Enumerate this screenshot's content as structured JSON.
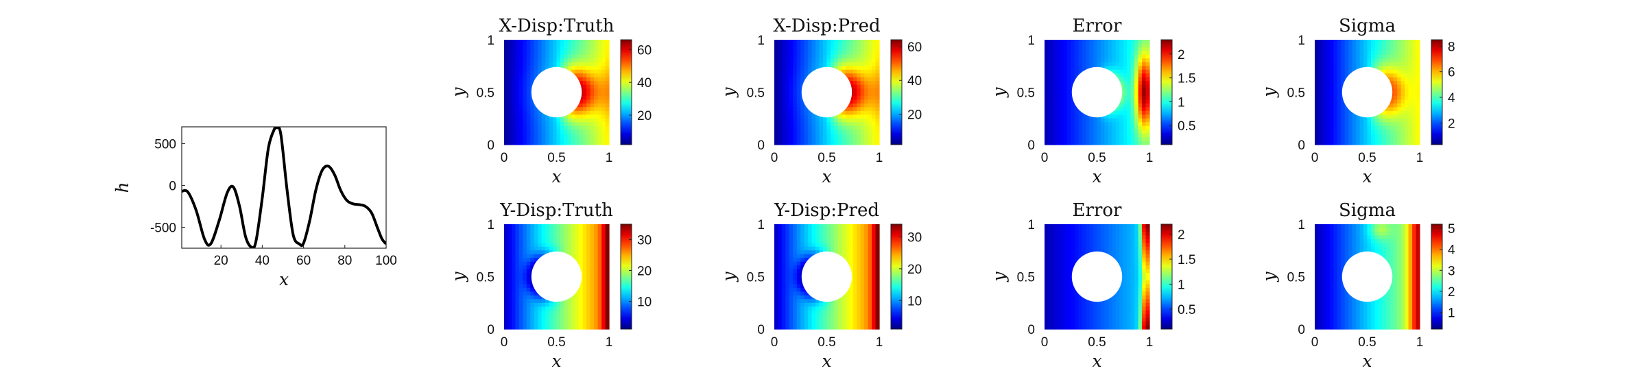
{
  "chart_data": [
    {
      "type": "line",
      "xlabel": "x",
      "ylabel": "h",
      "xlim": [
        1,
        100
      ],
      "ylim": [
        -750,
        700
      ],
      "xticks": [
        20,
        40,
        60,
        80,
        100
      ],
      "yticks": [
        500,
        0,
        -500
      ],
      "x": [
        1,
        4,
        8,
        12,
        15,
        19,
        23,
        26,
        29,
        32,
        35,
        37,
        40,
        43,
        46,
        47,
        49,
        52,
        55,
        58,
        60,
        63,
        66,
        69,
        72,
        75,
        78,
        81,
        84,
        87,
        90,
        93,
        96,
        98,
        100
      ],
      "y": [
        -70,
        -80,
        -300,
        -640,
        -700,
        -430,
        -90,
        -20,
        -250,
        -620,
        -740,
        -660,
        -150,
        450,
        680,
        690,
        610,
        -50,
        -590,
        -700,
        -690,
        -420,
        -50,
        180,
        230,
        130,
        -60,
        -180,
        -220,
        -230,
        -250,
        -330,
        -520,
        -640,
        -700
      ],
      "line_color": "#000000"
    },
    {
      "type": "heatmap",
      "title": "X-Disp:Truth",
      "xlabel": "x",
      "ylabel": "y",
      "xticks": [
        0,
        0.5,
        1
      ],
      "yticks": [
        0,
        0.5,
        1
      ],
      "colorbar_ticks": [
        20,
        40,
        60
      ],
      "colorbar_range": [
        2,
        66
      ],
      "field": "xdisp"
    },
    {
      "type": "heatmap",
      "title": "X-Disp:Pred",
      "xlabel": "x",
      "ylabel": "y",
      "xticks": [
        0,
        0.5,
        1
      ],
      "yticks": [
        0,
        0.5,
        1
      ],
      "colorbar_ticks": [
        20,
        40,
        60
      ],
      "colorbar_range": [
        2,
        64
      ],
      "field": "xdisp"
    },
    {
      "type": "heatmap",
      "title": "Error",
      "xlabel": "x",
      "ylabel": "y",
      "xticks": [
        0,
        0.5,
        1
      ],
      "yticks": [
        0,
        0.5,
        1
      ],
      "colorbar_ticks": [
        0.5,
        1,
        1.5,
        2
      ],
      "colorbar_tick_labels": [
        "0.5",
        "1",
        "1.5",
        "2"
      ],
      "colorbar_range": [
        0.1,
        2.3
      ],
      "field": "xerr"
    },
    {
      "type": "heatmap",
      "title": "Sigma",
      "xlabel": "x",
      "ylabel": "y",
      "xticks": [
        0,
        0.5,
        1
      ],
      "yticks": [
        0,
        0.5,
        1
      ],
      "colorbar_ticks": [
        2,
        4,
        6,
        8
      ],
      "colorbar_range": [
        0.3,
        8.5
      ],
      "field": "xsig"
    },
    {
      "type": "heatmap",
      "title": "Y-Disp:Truth",
      "xlabel": "x",
      "ylabel": "y",
      "xticks": [
        0,
        0.5,
        1
      ],
      "yticks": [
        0,
        0.5,
        1
      ],
      "colorbar_ticks": [
        10,
        20,
        30
      ],
      "colorbar_range": [
        1,
        35
      ],
      "field": "ydisp"
    },
    {
      "type": "heatmap",
      "title": "Y-Disp:Pred",
      "xlabel": "x",
      "ylabel": "y",
      "xticks": [
        0,
        0.5,
        1
      ],
      "yticks": [
        0,
        0.5,
        1
      ],
      "colorbar_ticks": [
        10,
        20,
        30
      ],
      "colorbar_range": [
        1,
        34
      ],
      "field": "ydisp"
    },
    {
      "type": "heatmap",
      "title": "Error",
      "xlabel": "x",
      "ylabel": "y",
      "xticks": [
        0,
        0.5,
        1
      ],
      "yticks": [
        0,
        0.5,
        1
      ],
      "colorbar_ticks": [
        0.5,
        1,
        1.5,
        2
      ],
      "colorbar_tick_labels": [
        "0.5",
        "1",
        "1.5",
        "2"
      ],
      "colorbar_range": [
        0.1,
        2.2
      ],
      "field": "yerr"
    },
    {
      "type": "heatmap",
      "title": "Sigma",
      "xlabel": "x",
      "ylabel": "y",
      "xticks": [
        0,
        0.5,
        1
      ],
      "yticks": [
        0,
        0.5,
        1
      ],
      "colorbar_ticks": [
        1,
        2,
        3,
        4,
        5
      ],
      "colorbar_range": [
        0.2,
        5.2
      ],
      "field": "ysig"
    }
  ]
}
